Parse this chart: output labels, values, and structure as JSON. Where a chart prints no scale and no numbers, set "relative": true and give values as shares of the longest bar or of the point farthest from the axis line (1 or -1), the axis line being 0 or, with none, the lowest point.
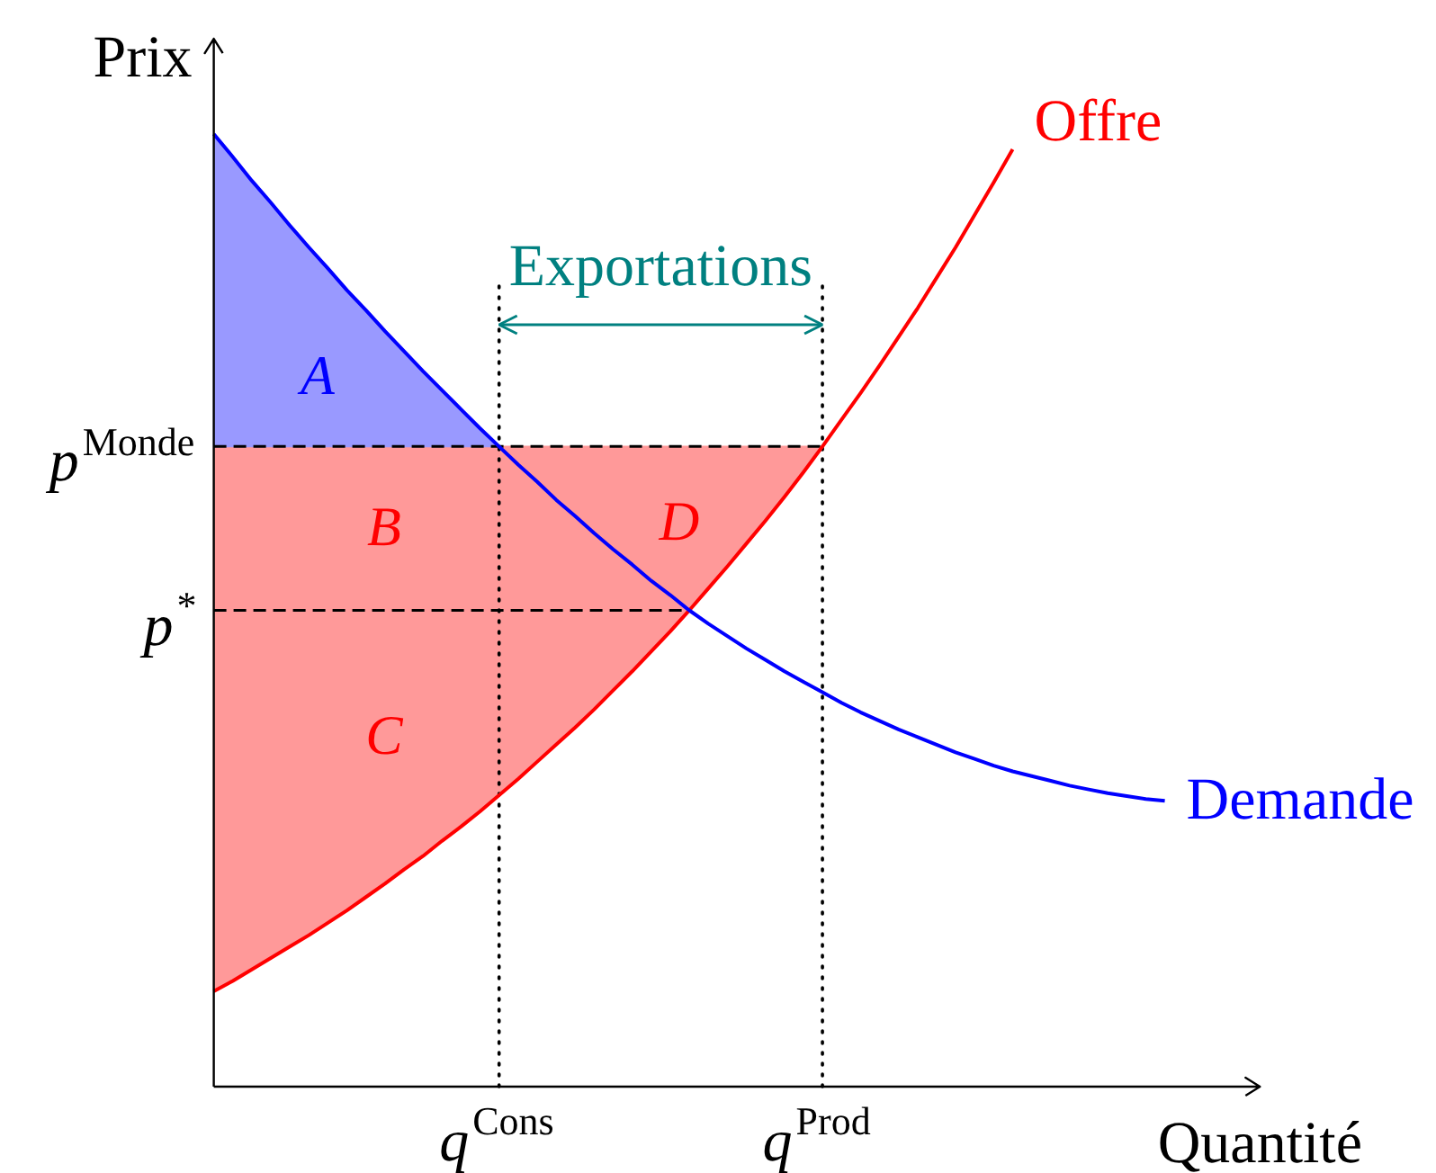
{
  "chart_data": {
    "type": "line",
    "relative": true,
    "xlabel": "Quantité",
    "ylabel": "Prix",
    "categories": [
      null,
      null,
      null,
      null,
      null,
      null,
      null,
      null,
      null,
      null,
      null,
      null,
      null,
      null,
      null,
      "q$^{Cons}$",
      null,
      null,
      null,
      null,
      null,
      null,
      null,
      null,
      null,
      null,
      null,
      null,
      null,
      null,
      null,
      null,
      "q$^{Prod}$",
      null,
      null,
      null,
      null,
      null,
      null,
      null,
      null,
      null,
      null,
      null,
      null,
      null,
      null,
      null,
      null,
      null,
      null
    ],
    "series": [
      {
        "name": "Offre",
        "color": "#ff0000",
        "values": [
          0.1,
          0.111,
          0.123,
          0.135,
          0.147,
          0.159,
          0.172,
          0.185,
          0.199,
          0.213,
          0.228,
          0.242,
          0.258,
          0.273,
          0.289,
          0.306,
          0.323,
          0.341,
          0.359,
          0.377,
          0.396,
          0.416,
          0.436,
          0.457,
          0.478,
          0.5,
          0.523,
          0.546,
          0.57,
          0.594,
          0.619,
          0.645,
          0.672,
          0.7,
          0.728,
          0.757,
          0.787,
          0.817,
          0.849,
          0.881,
          0.915,
          0.949,
          0.984,
          null,
          null,
          null,
          null,
          null,
          null,
          null,
          null
        ]
      },
      {
        "type": "area",
        "color": "#ff9999",
        "values": [
          0.672,
          0.672,
          0.672,
          0.672,
          0.672,
          0.672,
          0.672,
          0.672,
          0.672,
          0.672,
          0.672,
          0.672,
          0.672,
          0.672,
          0.672,
          0.672,
          0.653,
          0.635,
          0.616,
          0.599,
          0.581,
          0.564,
          0.548,
          0.531,
          0.516,
          0.5,
          null,
          null,
          null,
          null,
          null,
          null,
          null,
          null,
          null,
          null,
          null,
          null,
          null,
          null,
          null,
          null,
          null,
          null,
          null,
          null,
          null,
          null,
          null,
          null,
          null
        ]
      },
      {
        "type": "area",
        "color": "#ff9999",
        "values": [
          null,
          null,
          null,
          null,
          null,
          null,
          null,
          null,
          null,
          null,
          null,
          null,
          null,
          null,
          null,
          0.672,
          0.672,
          0.672,
          0.672,
          0.672,
          0.672,
          0.672,
          0.672,
          0.672,
          0.672,
          0.672,
          0.672,
          0.672,
          0.672,
          0.672,
          0.672,
          0.672,
          0.672,
          null,
          null,
          null,
          null,
          null,
          null,
          null,
          null,
          null,
          null,
          null,
          null,
          null,
          null,
          null,
          null,
          null,
          null
        ]
      },
      {
        "type": "area",
        "color": "#9999ff",
        "values": [
          1.0,
          0.976,
          0.951,
          0.928,
          0.904,
          0.881,
          0.859,
          0.836,
          0.815,
          0.793,
          0.772,
          0.751,
          0.731,
          0.711,
          0.691,
          0.672,
          null,
          null,
          null,
          null,
          null,
          null,
          null,
          null,
          null,
          null,
          null,
          null,
          null,
          null,
          null,
          null,
          null,
          null,
          null,
          null,
          null,
          null,
          null,
          null,
          null,
          null,
          null,
          null,
          null,
          null,
          null,
          null,
          null,
          null,
          null
        ]
      },
      {
        "name": "Demande",
        "color": "#0000ff",
        "values": [
          1.0,
          0.976,
          0.951,
          0.928,
          0.904,
          0.881,
          0.859,
          0.836,
          0.815,
          0.793,
          0.772,
          0.751,
          0.731,
          0.711,
          0.691,
          0.672,
          0.653,
          0.635,
          0.616,
          0.599,
          0.581,
          0.564,
          0.548,
          0.531,
          0.516,
          0.5,
          0.486,
          0.473,
          0.46,
          0.448,
          0.436,
          0.425,
          0.414,
          0.403,
          0.393,
          0.384,
          0.375,
          0.367,
          0.359,
          0.351,
          0.344,
          0.337,
          0.331,
          0.326,
          0.321,
          0.316,
          0.312,
          0.308,
          0.305,
          0.302,
          0.3
        ]
      }
    ],
    "ref_lines": [
      {
        "axis": "y",
        "value": 0.672,
        "label": "p$^{Monde}$",
        "color": "#000000",
        "line_style": "dashed"
      },
      {
        "axis": "y",
        "value": 0.5,
        "label": "p$^{*}$",
        "color": "#000000",
        "line_style": "dashed"
      },
      {
        "axis": "x",
        "value": "q$^{Cons}$",
        "color": "#000000",
        "line_style": "dotted"
      },
      {
        "axis": "x",
        "value": "q$^{Prod}$",
        "color": "#000000",
        "line_style": "dotted"
      }
    ],
    "annotations": [
      "Exportations",
      "A",
      "B",
      "D",
      "C"
    ]
  }
}
